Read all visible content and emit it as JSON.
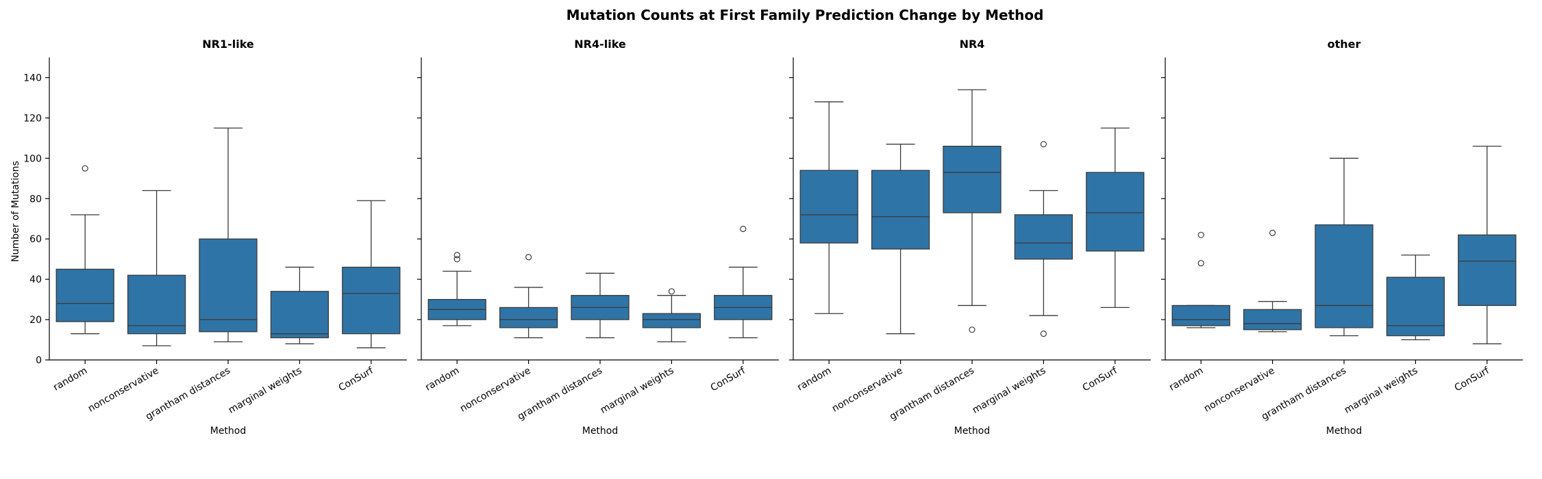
{
  "chart_data": {
    "type": "box",
    "title": "Mutation Counts at First Family Prediction Change by Method",
    "ylabel": "Number of Mutations",
    "xlabel": "Method",
    "ylim": [
      0,
      150
    ],
    "yticks": [
      0,
      20,
      40,
      60,
      80,
      100,
      120,
      140
    ],
    "categories": [
      "random",
      "nonconservative",
      "grantham distances",
      "marginal weights",
      "ConSurf"
    ],
    "box_color": "#2f74a6",
    "sharey": true,
    "panels": [
      {
        "title": "NR1-like",
        "boxes": [
          {
            "category": "random",
            "whislo": 13,
            "q1": 19,
            "med": 28,
            "q3": 45,
            "whishi": 72,
            "fliers": [
              95
            ]
          },
          {
            "category": "nonconservative",
            "whislo": 7,
            "q1": 13,
            "med": 17,
            "q3": 42,
            "whishi": 84,
            "fliers": []
          },
          {
            "category": "grantham distances",
            "whislo": 9,
            "q1": 14,
            "med": 20,
            "q3": 60,
            "whishi": 115,
            "fliers": []
          },
          {
            "category": "marginal weights",
            "whislo": 8,
            "q1": 11,
            "med": 13,
            "q3": 34,
            "whishi": 46,
            "fliers": []
          },
          {
            "category": "ConSurf",
            "whislo": 6,
            "q1": 13,
            "med": 33,
            "q3": 46,
            "whishi": 79,
            "fliers": []
          }
        ]
      },
      {
        "title": "NR4-like",
        "boxes": [
          {
            "category": "random",
            "whislo": 17,
            "q1": 20,
            "med": 25,
            "q3": 30,
            "whishi": 44,
            "fliers": [
              50,
              52
            ]
          },
          {
            "category": "nonconservative",
            "whislo": 11,
            "q1": 16,
            "med": 20,
            "q3": 26,
            "whishi": 36,
            "fliers": [
              51
            ]
          },
          {
            "category": "grantham distances",
            "whislo": 11,
            "q1": 20,
            "med": 26,
            "q3": 32,
            "whishi": 43,
            "fliers": []
          },
          {
            "category": "marginal weights",
            "whislo": 9,
            "q1": 16,
            "med": 20,
            "q3": 23,
            "whishi": 32,
            "fliers": [
              34
            ]
          },
          {
            "category": "ConSurf",
            "whislo": 11,
            "q1": 20,
            "med": 26,
            "q3": 32,
            "whishi": 46,
            "fliers": [
              65
            ]
          }
        ]
      },
      {
        "title": "NR4",
        "boxes": [
          {
            "category": "random",
            "whislo": 23,
            "q1": 58,
            "med": 72,
            "q3": 94,
            "whishi": 128,
            "fliers": []
          },
          {
            "category": "nonconservative",
            "whislo": 13,
            "q1": 55,
            "med": 71,
            "q3": 94,
            "whishi": 107,
            "fliers": []
          },
          {
            "category": "grantham distances",
            "whislo": 27,
            "q1": 73,
            "med": 93,
            "q3": 106,
            "whishi": 134,
            "fliers": [
              15
            ]
          },
          {
            "category": "marginal weights",
            "whislo": 22,
            "q1": 50,
            "med": 58,
            "q3": 72,
            "whishi": 84,
            "fliers": [
              107,
              13
            ]
          },
          {
            "category": "ConSurf",
            "whislo": 26,
            "q1": 54,
            "med": 73,
            "q3": 93,
            "whishi": 115,
            "fliers": []
          }
        ]
      },
      {
        "title": "other",
        "boxes": [
          {
            "category": "random",
            "whislo": 16,
            "q1": 17,
            "med": 20,
            "q3": 27,
            "whishi": 27,
            "fliers": [
              48,
              62
            ]
          },
          {
            "category": "nonconservative",
            "whislo": 14,
            "q1": 15,
            "med": 18,
            "q3": 25,
            "whishi": 29,
            "fliers": [
              63
            ]
          },
          {
            "category": "grantham distances",
            "whislo": 12,
            "q1": 16,
            "med": 27,
            "q3": 67,
            "whishi": 100,
            "fliers": []
          },
          {
            "category": "marginal weights",
            "whislo": 10,
            "q1": 12,
            "med": 17,
            "q3": 41,
            "whishi": 52,
            "fliers": []
          },
          {
            "category": "ConSurf",
            "whislo": 8,
            "q1": 27,
            "med": 49,
            "q3": 62,
            "whishi": 106,
            "fliers": []
          }
        ]
      }
    ]
  }
}
